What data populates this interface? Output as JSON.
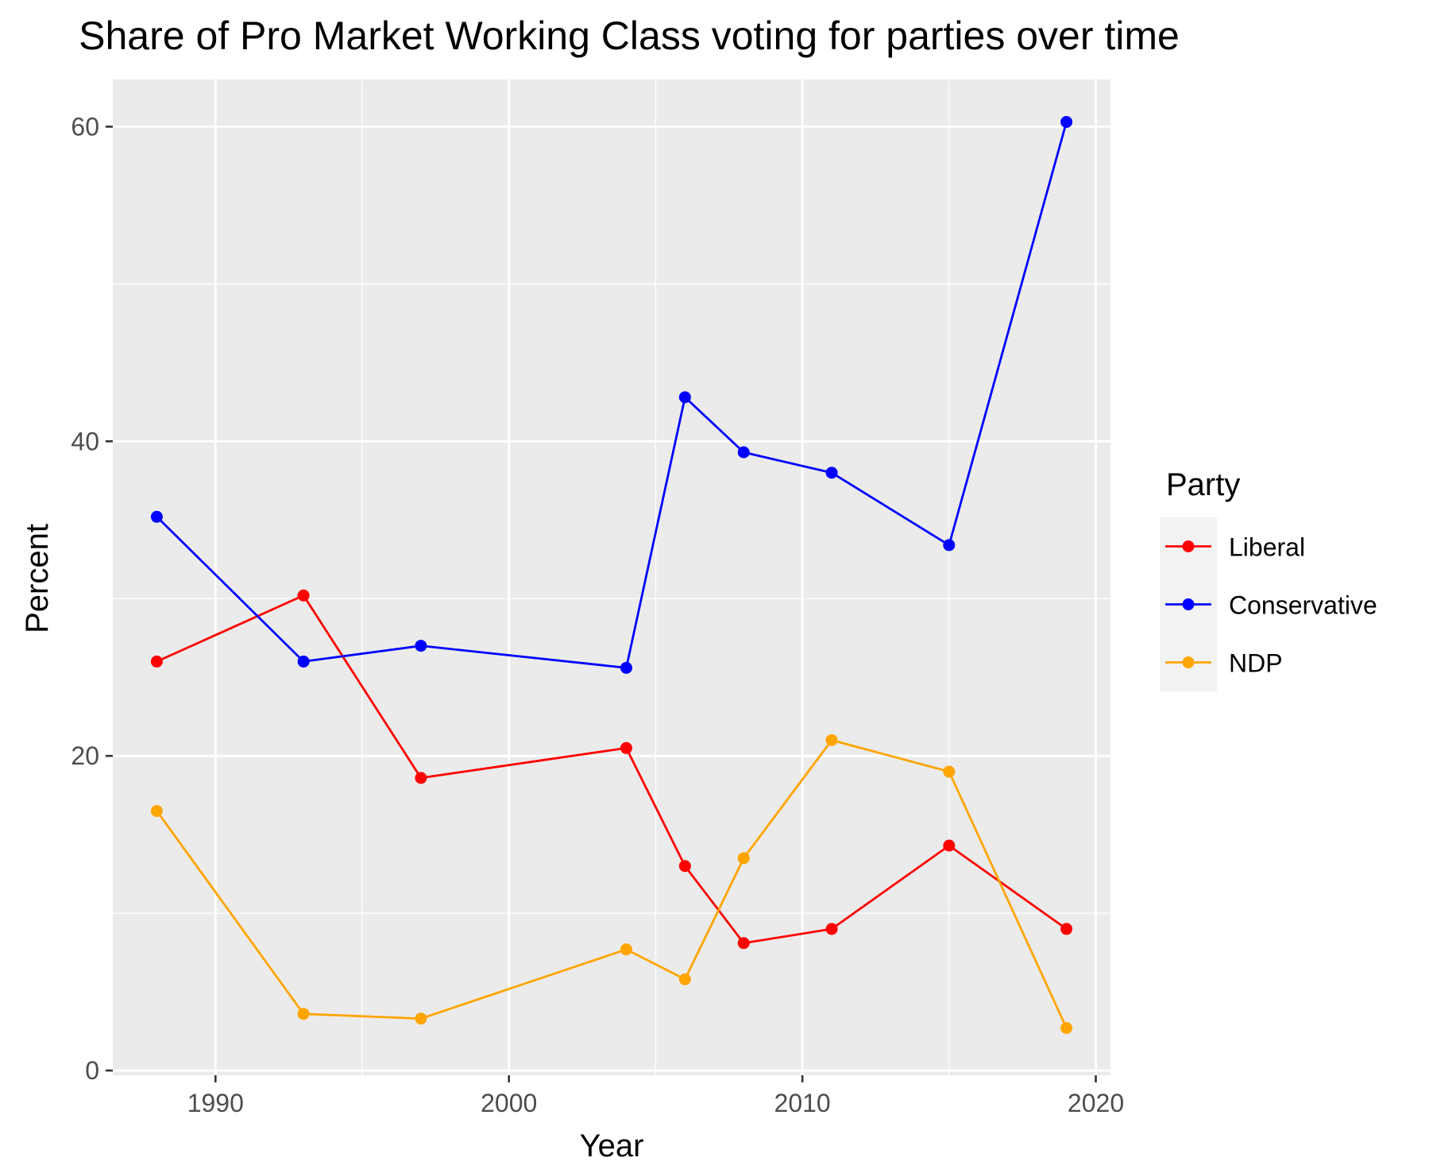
{
  "chart_data": {
    "type": "line",
    "title": "Share of Pro Market Working Class voting for parties over time",
    "xlabel": "Year",
    "ylabel": "Percent",
    "x": [
      1988,
      1993,
      1997,
      2004,
      2006,
      2008,
      2011,
      2015,
      2019
    ],
    "xlim": [
      1986.5,
      2020.5
    ],
    "ylim": [
      -0.3,
      63.0
    ],
    "xticks": [
      "1990",
      "2000",
      "2010",
      "2020"
    ],
    "yticks": [
      "0",
      "20",
      "40",
      "60"
    ],
    "grid": true,
    "legend": {
      "title": "Party",
      "position": "right"
    },
    "series": [
      {
        "name": "Liberal",
        "color": "#FF0000",
        "values": [
          26.0,
          30.2,
          18.6,
          20.5,
          13.0,
          8.1,
          9.0,
          14.3,
          9.0
        ]
      },
      {
        "name": "Conservative",
        "color": "#0000FF",
        "values": [
          35.2,
          26.0,
          27.0,
          25.6,
          42.8,
          39.3,
          38.0,
          33.4,
          60.3
        ]
      },
      {
        "name": "NDP",
        "color": "#FFA500",
        "values": [
          16.5,
          3.6,
          3.3,
          7.7,
          5.8,
          13.5,
          21.0,
          19.0,
          2.7
        ]
      }
    ]
  }
}
